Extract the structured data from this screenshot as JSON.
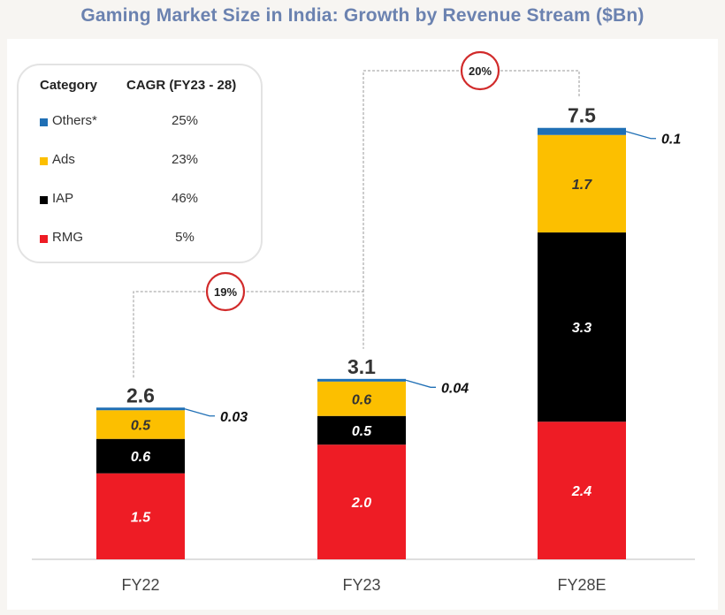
{
  "chart_data": {
    "type": "bar",
    "stacked": true,
    "title": "Gaming Market Size in India: Growth by Revenue Stream ($Bn)",
    "categories": [
      "FY22",
      "FY23",
      "FY28E"
    ],
    "totals": [
      2.6,
      3.1,
      7.5
    ],
    "total_labels": [
      "2.6",
      "3.1",
      "7.5"
    ],
    "series": [
      {
        "name": "RMG",
        "color": "#ee1c25",
        "values": [
          1.5,
          2.0,
          2.4
        ],
        "labels": [
          "1.5",
          "2.0",
          "2.4"
        ]
      },
      {
        "name": "IAP",
        "color": "#000000",
        "values": [
          0.6,
          0.5,
          3.3
        ],
        "labels": [
          "0.6",
          "0.5",
          "3.3"
        ]
      },
      {
        "name": "Ads",
        "color": "#fcbf00",
        "values": [
          0.5,
          0.6,
          1.7
        ],
        "labels": [
          "0.5",
          "0.6",
          "1.7"
        ]
      },
      {
        "name": "Others*",
        "color": "#1f6fb5",
        "values": [
          0.03,
          0.04,
          0.1
        ],
        "labels": [
          "0.03",
          "0.04",
          "0.1"
        ]
      }
    ],
    "growth_annotations": [
      {
        "from": "FY22",
        "to": "FY23",
        "label": "19%"
      },
      {
        "from": "FY23",
        "to": "FY28E",
        "label": "20%"
      }
    ],
    "legend": {
      "position": "top-left",
      "header_category": "Category",
      "header_cagr": "CAGR (FY23 - 28)",
      "rows": [
        {
          "name": "Others*",
          "color": "#1f6fb5",
          "cagr": "25%"
        },
        {
          "name": "Ads",
          "color": "#fcbf00",
          "cagr": "23%"
        },
        {
          "name": "IAP",
          "color": "#000000",
          "cagr": "46%"
        },
        {
          "name": "RMG",
          "color": "#ee1c25",
          "cagr": "5%"
        }
      ]
    }
  }
}
